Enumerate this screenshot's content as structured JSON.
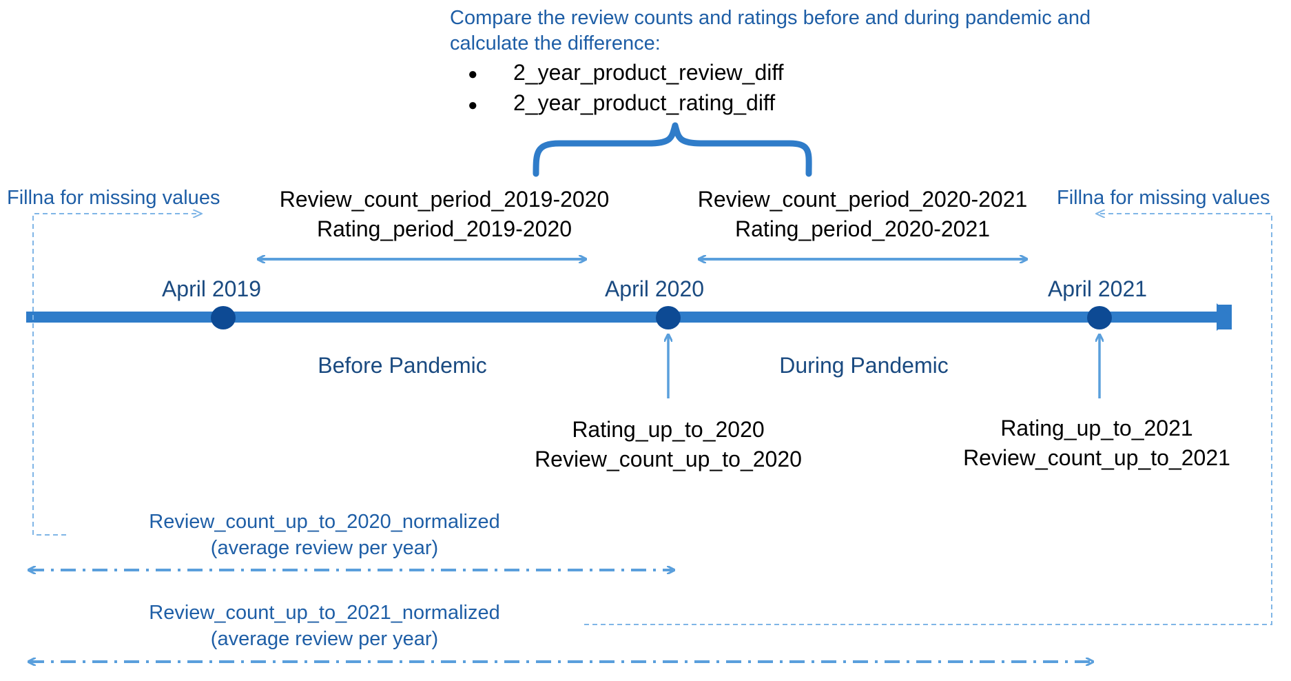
{
  "colors": {
    "timeline": "#2f7cc9",
    "milestone_dot": "#0d4a94",
    "light_arrow": "#5a9fdc",
    "brace": "#2f7cc9",
    "dark_label": "#1a4a80",
    "blue_text": "#1e5ea6",
    "black_text": "#000000"
  },
  "compare_note": {
    "line1": "Compare the review counts and ratings before and during pandemic and",
    "line2": "calculate the difference:",
    "bullets": [
      "2_year_product_review_diff",
      "2_year_product_rating_diff"
    ],
    "bullet_glyph": "●"
  },
  "fillna_left": "Fillna for missing values",
  "fillna_right": "Fillna for missing values",
  "period_2019_2020": {
    "line1": "Review_count_period_2019-2020",
    "line2": "Rating_period_2019-2020"
  },
  "period_2020_2021": {
    "line1": "Review_count_period_2020-2021",
    "line2": "Rating_period_2020-2021"
  },
  "milestones": [
    "April 2019",
    "April 2020",
    "April 2021"
  ],
  "phases": {
    "before": "Before Pandemic",
    "during": "During Pandemic"
  },
  "snapshot_2020": {
    "line1": "Rating_up_to_2020",
    "line2": "Review_count_up_to_2020"
  },
  "snapshot_2021": {
    "line1": "Rating_up_to_2021",
    "line2": "Review_count_up_to_2021"
  },
  "normalized_2020": {
    "line1": "Review_count_up_to_2020_normalized",
    "line2": "(average review per year)"
  },
  "normalized_2021": {
    "line1": "Review_count_up_to_2021_normalized",
    "line2": "(average review per year)"
  }
}
